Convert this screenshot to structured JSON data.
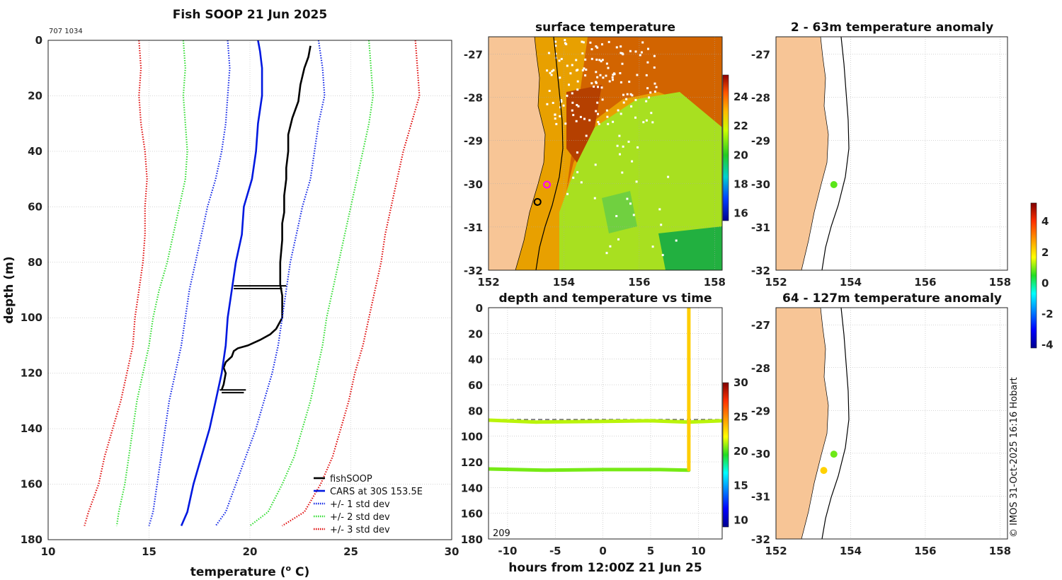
{
  "chart_data": [
    {
      "type": "line",
      "title": "Fish SOOP 21 Jun 2025",
      "corner_label": "707 1034",
      "xlabel": "temperature (",
      "xlabel_sup": "o",
      "xlabel_tail": " C)",
      "ylabel": "depth (m)",
      "xlim": [
        10,
        30
      ],
      "ylim": [
        180,
        0
      ],
      "xticks": [
        "10",
        "15",
        "20",
        "25",
        "30"
      ],
      "yticks": [
        "0",
        "20",
        "40",
        "60",
        "80",
        "100",
        "120",
        "140",
        "160",
        "180"
      ],
      "series": [
        {
          "name": "fishSOOP",
          "color": "#000000",
          "style": "solid",
          "points": [
            [
              23.0,
              2
            ],
            [
              22.9,
              6
            ],
            [
              22.7,
              10
            ],
            [
              22.5,
              16
            ],
            [
              22.4,
              22
            ],
            [
              22.1,
              28
            ],
            [
              21.9,
              34
            ],
            [
              21.9,
              40
            ],
            [
              21.8,
              46
            ],
            [
              21.8,
              50
            ],
            [
              21.7,
              56
            ],
            [
              21.7,
              62
            ],
            [
              21.6,
              66
            ],
            [
              21.6,
              72
            ],
            [
              21.5,
              80
            ],
            [
              21.5,
              88
            ],
            [
              21.6,
              92
            ],
            [
              21.6,
              96
            ],
            [
              21.6,
              100
            ],
            [
              21.3,
              104
            ],
            [
              21.0,
              106
            ],
            [
              20.5,
              108
            ],
            [
              19.9,
              110
            ],
            [
              19.4,
              111
            ],
            [
              19.2,
              112
            ],
            [
              19.1,
              114
            ],
            [
              18.8,
              116
            ],
            [
              18.7,
              118
            ],
            [
              18.8,
              120
            ],
            [
              18.7,
              124
            ],
            [
              18.6,
              126
            ]
          ]
        },
        {
          "name": "CARS at 30S 153.5E",
          "color": "#0018e0",
          "style": "solid",
          "points": [
            [
              20.4,
              0
            ],
            [
              20.5,
              4
            ],
            [
              20.6,
              10
            ],
            [
              20.6,
              20
            ],
            [
              20.4,
              30
            ],
            [
              20.3,
              40
            ],
            [
              20.1,
              50
            ],
            [
              19.7,
              60
            ],
            [
              19.6,
              70
            ],
            [
              19.3,
              80
            ],
            [
              19.1,
              90
            ],
            [
              18.9,
              100
            ],
            [
              18.8,
              110
            ],
            [
              18.6,
              120
            ],
            [
              18.3,
              130
            ],
            [
              18.0,
              140
            ],
            [
              17.6,
              150
            ],
            [
              17.2,
              160
            ],
            [
              16.9,
              170
            ],
            [
              16.6,
              175
            ]
          ]
        },
        {
          "name": "+/- 1 std dev",
          "color": "#1428e6",
          "style": "dotted",
          "points": [
            [
              18.9,
              0
            ],
            [
              19.0,
              10
            ],
            [
              18.9,
              20
            ],
            [
              18.8,
              30
            ],
            [
              18.6,
              40
            ],
            [
              18.3,
              50
            ],
            [
              17.9,
              60
            ],
            [
              17.6,
              70
            ],
            [
              17.3,
              80
            ],
            [
              17.0,
              90
            ],
            [
              16.8,
              100
            ],
            [
              16.6,
              110
            ],
            [
              16.3,
              120
            ],
            [
              16.0,
              130
            ],
            [
              15.8,
              140
            ],
            [
              15.6,
              150
            ],
            [
              15.4,
              160
            ],
            [
              15.2,
              170
            ],
            [
              15.0,
              175
            ]
          ]
        },
        {
          "name": "+/- 1 std dev upper",
          "color": "#1428e6",
          "style": "dotted",
          "points": [
            [
              23.4,
              0
            ],
            [
              23.6,
              10
            ],
            [
              23.7,
              20
            ],
            [
              23.4,
              30
            ],
            [
              23.2,
              40
            ],
            [
              23.0,
              50
            ],
            [
              22.6,
              60
            ],
            [
              22.3,
              70
            ],
            [
              22.0,
              80
            ],
            [
              21.8,
              90
            ],
            [
              21.6,
              100
            ],
            [
              21.4,
              110
            ],
            [
              21.1,
              120
            ],
            [
              20.7,
              130
            ],
            [
              20.3,
              140
            ],
            [
              19.8,
              150
            ],
            [
              19.3,
              160
            ],
            [
              18.8,
              170
            ],
            [
              18.3,
              175
            ]
          ]
        },
        {
          "name": "+/- 2 std dev",
          "color": "#33dd33",
          "style": "dotted",
          "points": [
            [
              16.7,
              0
            ],
            [
              16.8,
              10
            ],
            [
              16.7,
              20
            ],
            [
              16.8,
              30
            ],
            [
              16.9,
              40
            ],
            [
              16.8,
              50
            ],
            [
              16.5,
              60
            ],
            [
              16.2,
              70
            ],
            [
              15.9,
              80
            ],
            [
              15.5,
              90
            ],
            [
              15.2,
              100
            ],
            [
              15.0,
              110
            ],
            [
              14.7,
              120
            ],
            [
              14.4,
              130
            ],
            [
              14.2,
              140
            ],
            [
              14.0,
              150
            ],
            [
              13.8,
              160
            ],
            [
              13.5,
              170
            ],
            [
              13.4,
              175
            ]
          ]
        },
        {
          "name": "+/- 2 std dev upper",
          "color": "#33dd33",
          "style": "dotted",
          "points": [
            [
              25.9,
              0
            ],
            [
              26.0,
              10
            ],
            [
              26.1,
              20
            ],
            [
              25.9,
              30
            ],
            [
              25.6,
              40
            ],
            [
              25.3,
              50
            ],
            [
              25.0,
              60
            ],
            [
              24.7,
              70
            ],
            [
              24.4,
              80
            ],
            [
              24.1,
              90
            ],
            [
              23.8,
              100
            ],
            [
              23.6,
              110
            ],
            [
              23.3,
              120
            ],
            [
              23.0,
              130
            ],
            [
              22.6,
              140
            ],
            [
              22.2,
              150
            ],
            [
              21.6,
              160
            ],
            [
              20.9,
              170
            ],
            [
              20.0,
              175
            ]
          ]
        },
        {
          "name": "+/- 3 std dev",
          "color": "#e01010",
          "style": "dotted",
          "points": [
            [
              14.5,
              0
            ],
            [
              14.6,
              10
            ],
            [
              14.5,
              20
            ],
            [
              14.6,
              30
            ],
            [
              14.8,
              40
            ],
            [
              14.9,
              50
            ],
            [
              14.8,
              60
            ],
            [
              14.8,
              70
            ],
            [
              14.7,
              80
            ],
            [
              14.5,
              90
            ],
            [
              14.3,
              100
            ],
            [
              14.2,
              110
            ],
            [
              13.9,
              120
            ],
            [
              13.6,
              130
            ],
            [
              13.2,
              140
            ],
            [
              12.8,
              150
            ],
            [
              12.5,
              160
            ],
            [
              12.0,
              170
            ],
            [
              11.8,
              175
            ]
          ]
        },
        {
          "name": "+/- 3 std dev upper",
          "color": "#e01010",
          "style": "dotted",
          "points": [
            [
              28.2,
              0
            ],
            [
              28.3,
              10
            ],
            [
              28.4,
              20
            ],
            [
              28.0,
              30
            ],
            [
              27.6,
              40
            ],
            [
              27.3,
              50
            ],
            [
              27.0,
              60
            ],
            [
              26.7,
              70
            ],
            [
              26.5,
              80
            ],
            [
              26.2,
              90
            ],
            [
              25.9,
              100
            ],
            [
              25.6,
              110
            ],
            [
              25.2,
              120
            ],
            [
              24.9,
              130
            ],
            [
              24.5,
              140
            ],
            [
              24.1,
              150
            ],
            [
              23.5,
              160
            ],
            [
              22.7,
              170
            ],
            [
              21.6,
              175
            ]
          ]
        }
      ],
      "legend": [
        {
          "label": "fishSOOP",
          "color": "#000000",
          "style": "solid"
        },
        {
          "label": "CARS at 30S 153.5E",
          "color": "#0018e0",
          "style": "solid"
        },
        {
          "label": "+/- 1 std dev",
          "color": "#1428e6",
          "style": "dotted"
        },
        {
          "label": "+/- 2 std dev",
          "color": "#33dd33",
          "style": "dotted"
        },
        {
          "label": "+/- 3 std dev",
          "color": "#e01010",
          "style": "dotted"
        }
      ]
    },
    {
      "type": "heatmap",
      "title": "surface temperature",
      "xlim": [
        152,
        158.2
      ],
      "ylim": [
        -32,
        -26.6
      ],
      "xticks": [
        "152",
        "154",
        "156",
        "158"
      ],
      "yticks": [
        "-27",
        "-28",
        "-29",
        "-30",
        "-31",
        "-32"
      ],
      "colorbar_ticks": [
        "16",
        "18",
        "20",
        "22",
        "24"
      ],
      "colorbar_range": [
        15.5,
        25.5
      ],
      "markers": [
        {
          "name": "fishSOOP location",
          "lon": 153.55,
          "lat": -30.02,
          "color": "#ff00ff"
        },
        {
          "name": "second location",
          "lon": 153.3,
          "lat": -30.42,
          "color": "#000000"
        }
      ]
    },
    {
      "type": "scatter",
      "title": "depth and temperature vs time",
      "xlabel": "hours from 12:00Z 21 Jun 25",
      "corner_label": "209",
      "xlim": [
        -12,
        12.5
      ],
      "ylim": [
        180,
        0
      ],
      "xticks": [
        "-10",
        "-5",
        "0",
        "5",
        "10"
      ],
      "yticks": [
        "0",
        "20",
        "40",
        "60",
        "80",
        "100",
        "120",
        "140",
        "160",
        "180"
      ],
      "colorbar_ticks": [
        "10",
        "15",
        "20",
        "25",
        "30"
      ],
      "colorbar_range": [
        9,
        30
      ],
      "dashed_depth": 87,
      "tracks": [
        {
          "name": "bottom track",
          "hours": [
            -12,
            -6,
            0,
            6,
            9
          ],
          "depth": [
            125.5,
            126.5,
            126,
            126,
            126.5
          ],
          "temp": 20.5
        },
        {
          "name": "mid track",
          "hours": [
            -12,
            -7,
            0,
            5,
            9,
            12.5
          ],
          "depth": [
            87.5,
            89,
            88.5,
            88,
            89,
            88
          ],
          "temp": 21.3
        },
        {
          "name": "vertical cast",
          "hours": [
            9,
            9,
            9,
            9
          ],
          "depth": [
            0,
            40,
            88,
            126
          ],
          "temp": 23.4
        }
      ]
    },
    {
      "type": "scatter",
      "title": "2 - 63m temperature anomaly",
      "xlim": [
        152,
        158.2
      ],
      "ylim": [
        -32,
        -26.6
      ],
      "xticks": [
        "152",
        "154",
        "156",
        "158"
      ],
      "yticks": [
        "-27",
        "-28",
        "-29",
        "-30",
        "-31",
        "-32"
      ],
      "points": [
        {
          "lon": 153.55,
          "lat": -30.02,
          "anomaly": 0.8
        }
      ]
    },
    {
      "type": "scatter",
      "title": "64 - 127m temperature anomaly",
      "xlim": [
        152,
        158.2
      ],
      "ylim": [
        -32,
        -26.6
      ],
      "xticks": [
        "152",
        "154",
        "156",
        "158"
      ],
      "yticks": [
        "-27",
        "-28",
        "-29",
        "-30",
        "-31",
        "-32"
      ],
      "points": [
        {
          "lon": 153.55,
          "lat": -30.02,
          "anomaly": 0.9
        },
        {
          "lon": 153.28,
          "lat": -30.4,
          "anomaly": 2.2
        }
      ],
      "colorbar_ticks": [
        "-4",
        "-2",
        "0",
        "2",
        "4"
      ],
      "colorbar_range": [
        -4.2,
        5.2
      ]
    }
  ],
  "copyright": "© IMOS 31-Oct-2025 16:16 Hobart"
}
